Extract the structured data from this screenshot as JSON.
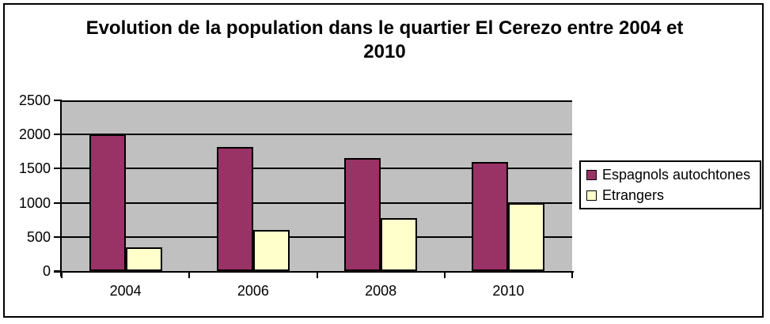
{
  "window": {
    "background": "#FFFFFF",
    "border_color": "#000000"
  },
  "chart_data": {
    "type": "bar",
    "title": "Evolution de la population dans le quartier El Cerezo entre 2004 et 2010",
    "title_lines": [
      "Evolution de la population dans le quartier El Cerezo entre 2004 et",
      "2010"
    ],
    "categories": [
      "2004",
      "2006",
      "2008",
      "2010"
    ],
    "series": [
      {
        "name": "Espagnols autochtones",
        "color": "#993366",
        "values": [
          2000,
          1820,
          1650,
          1600
        ]
      },
      {
        "name": "Etrangers",
        "color": "#FFFFCC",
        "values": [
          350,
          600,
          770,
          1000
        ]
      }
    ],
    "xlabel": "",
    "ylabel": "",
    "ylim": [
      0,
      2500
    ],
    "ytick_step": 500,
    "ytick_labels": [
      "0",
      "500",
      "1000",
      "1500",
      "2000",
      "2500"
    ],
    "grid": true,
    "plot_bg": "#C0C0C0",
    "gridline_color": "#000000",
    "legend_position": "right",
    "legend_bg": "#FFFFFF"
  }
}
